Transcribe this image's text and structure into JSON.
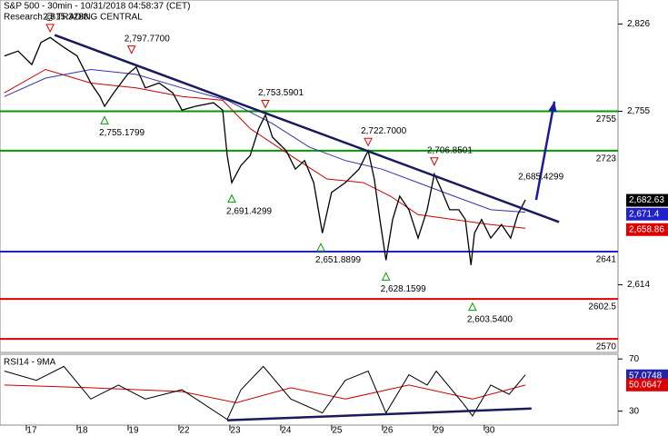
{
  "chart_data": {
    "type": "line",
    "title": "S&P 500 - 30min - 10/31/2018 04:58:37 (CET)",
    "subtitle": "Research @ TRADING CENTRAL",
    "xlim": [
      -0.625,
      11.52
    ],
    "xticks": [
      {
        "value": 0,
        "label": "17"
      },
      {
        "value": 1,
        "label": "18"
      },
      {
        "value": 2,
        "label": "19"
      },
      {
        "value": 3,
        "label": "22"
      },
      {
        "value": 4,
        "label": "23"
      },
      {
        "value": 5,
        "label": "24"
      },
      {
        "value": 6,
        "label": "25"
      },
      {
        "value": 7,
        "label": "26"
      },
      {
        "value": 8,
        "label": "29"
      },
      {
        "value": 9,
        "label": "30"
      }
    ],
    "ylim": [
      2559,
      2845.5
    ],
    "yticks": [
      {
        "value": 2826,
        "label": "2,826"
      },
      {
        "value": 2755,
        "label": "2,755"
      },
      {
        "value": 2614,
        "label": "2,614"
      }
    ],
    "series": [
      {
        "color": "#000000",
        "width": 1.3,
        "x": [
          -0.54,
          -0.27,
          0,
          0.18,
          0.36,
          0.63,
          0.89,
          1.16,
          1.34,
          1.43,
          1.61,
          1.88,
          2.05,
          2.23,
          2.5,
          2.77,
          2.95,
          3.21,
          3.57,
          3.75,
          3.84,
          3.93,
          4.11,
          4.29,
          4.46,
          4.59,
          4.73,
          5,
          5.18,
          5.36,
          5.54,
          5.71,
          5.89,
          6.16,
          6.43,
          6.61,
          6.73,
          6.84,
          6.96,
          7.09,
          7.23,
          7.41,
          7.59,
          7.77,
          7.91,
          8.04,
          8.21,
          8.39,
          8.52,
          8.63,
          8.7,
          8.84,
          9.02,
          9.23,
          9.41,
          9.55,
          9.7
        ],
        "values": [
          2800,
          2804,
          2793,
          2811,
          2815,
          2807,
          2800,
          2778,
          2767,
          2759,
          2770,
          2785,
          2791,
          2774,
          2778,
          2770,
          2756,
          2759,
          2762,
          2756,
          2719,
          2697,
          2711,
          2719,
          2741,
          2752,
          2734,
          2723,
          2708,
          2715,
          2697,
          2656,
          2689,
          2697,
          2708,
          2723,
          2700,
          2667,
          2634,
          2667,
          2686,
          2675,
          2652,
          2675,
          2704,
          2692,
          2675,
          2675,
          2667,
          2630,
          2656,
          2667,
          2652,
          2663,
          2652,
          2671,
          2683
        ]
      },
      {
        "color": "#cc0000",
        "width": 1,
        "x": [
          -0.54,
          0.27,
          1.16,
          2.05,
          2.95,
          3.75,
          4.29,
          5.09,
          5.8,
          6.52,
          7.05,
          7.59,
          8.3,
          9.02,
          9.7
        ],
        "values": [
          2770,
          2789,
          2778,
          2774,
          2767,
          2764,
          2741,
          2719,
          2700,
          2697,
          2686,
          2671,
          2667,
          2663,
          2660
        ]
      },
      {
        "color": "#3333aa",
        "width": 1,
        "x": [
          -0.54,
          0.27,
          1.16,
          2.05,
          2.95,
          3.84,
          4.73,
          5.45,
          6.16,
          6.88,
          7.59,
          8.3,
          9.02,
          9.7
        ],
        "values": [
          2767,
          2782,
          2789,
          2785,
          2774,
          2764,
          2745,
          2726,
          2715,
          2708,
          2697,
          2686,
          2675,
          2673
        ]
      }
    ],
    "levels": [
      {
        "value": 2755,
        "color": "#009900"
      },
      {
        "value": 2723,
        "color": "#009900"
      },
      {
        "value": 2641,
        "color": "#2222cc"
      },
      {
        "value": 2602.5,
        "color": "#dd0000"
      },
      {
        "value": 2570,
        "color": "#dd0000"
      }
    ],
    "price_tags": [
      {
        "value": 2682.63,
        "label": "2,682.63",
        "color": "#000000"
      },
      {
        "value": 2671.4,
        "label": "2,671.4",
        "color": "#2222cc"
      },
      {
        "value": 2658.86,
        "label": "2,658.86",
        "color": "#dd0000"
      }
    ],
    "annotations": [
      {
        "x": 0.36,
        "value": 2815.3288,
        "label": "2,815.3288",
        "kind": "high"
      },
      {
        "x": 1.96,
        "value": 2797.77,
        "label": "2,797.7700",
        "kind": "high"
      },
      {
        "x": 1.43,
        "value": 2755.1799,
        "label": "2,755.1799",
        "kind": "low"
      },
      {
        "x": 4.59,
        "value": 2753.5901,
        "label": "2,753.5901",
        "kind": "high"
      },
      {
        "x": 3.93,
        "value": 2691.4299,
        "label": "2,691.4299",
        "kind": "low"
      },
      {
        "x": 6.61,
        "value": 2722.7,
        "label": "2,722.7000",
        "kind": "high"
      },
      {
        "x": 5.68,
        "value": 2651.8899,
        "label": "2,651.8899",
        "kind": "low"
      },
      {
        "x": 6.96,
        "value": 2628.1599,
        "label": "2,628.1599",
        "kind": "low"
      },
      {
        "x": 7.91,
        "value": 2706.8501,
        "label": "2,706.8501",
        "kind": "high"
      },
      {
        "x": 8.66,
        "value": 2603.54,
        "label": "2,603.5400",
        "kind": "low"
      },
      {
        "x": 9.7,
        "value": 2685.4299,
        "label": "2,685.4299",
        "kind": "plain"
      }
    ],
    "trendline": {
      "x": [
        0.45,
        10.36
      ],
      "values": [
        2817,
        2665
      ],
      "color": "#1a1a5e"
    },
    "arrow": {
      "x": [
        9.91,
        10.27
      ],
      "values": [
        2683,
        2763
      ],
      "color": "#1a1a9e"
    },
    "rsi": {
      "title": "RSI14 - 9MA",
      "ylim": [
        19.3,
        73.6
      ],
      "yticks": [
        30,
        70
      ],
      "series": [
        {
          "color": "#000000",
          "x": [
            -0.54,
            0.09,
            0.63,
            1.16,
            1.7,
            2.23,
            2.95,
            3.84,
            4.11,
            4.55,
            5.09,
            5.71,
            6.16,
            6.61,
            6.96,
            7.41,
            7.77,
            7.95,
            8.48,
            8.66,
            9.02,
            9.38,
            9.7
          ],
          "values": [
            60.7,
            53.6,
            64.3,
            39.3,
            50,
            39.3,
            46.4,
            23.6,
            46.4,
            64.3,
            39.3,
            28.6,
            53.6,
            60.7,
            28.6,
            57.9,
            50,
            60.7,
            35.7,
            26.4,
            50,
            42.9,
            57.9
          ]
        },
        {
          "color": "#cc0000",
          "x": [
            -0.54,
            1.16,
            2.95,
            4.02,
            5.09,
            6.16,
            7.41,
            8.66,
            9.7
          ],
          "values": [
            50,
            47.9,
            45,
            36.4,
            47.9,
            39.3,
            50,
            39.3,
            50
          ]
        }
      ],
      "tags": [
        {
          "value": 57.0748,
          "color": "#2222aa"
        },
        {
          "value": 50.0647,
          "color": "#dd0000"
        }
      ],
      "trendline": {
        "x": [
          3.84,
          9.82
        ],
        "values": [
          23,
          32
        ],
        "color": "#1a1a5e"
      }
    }
  }
}
